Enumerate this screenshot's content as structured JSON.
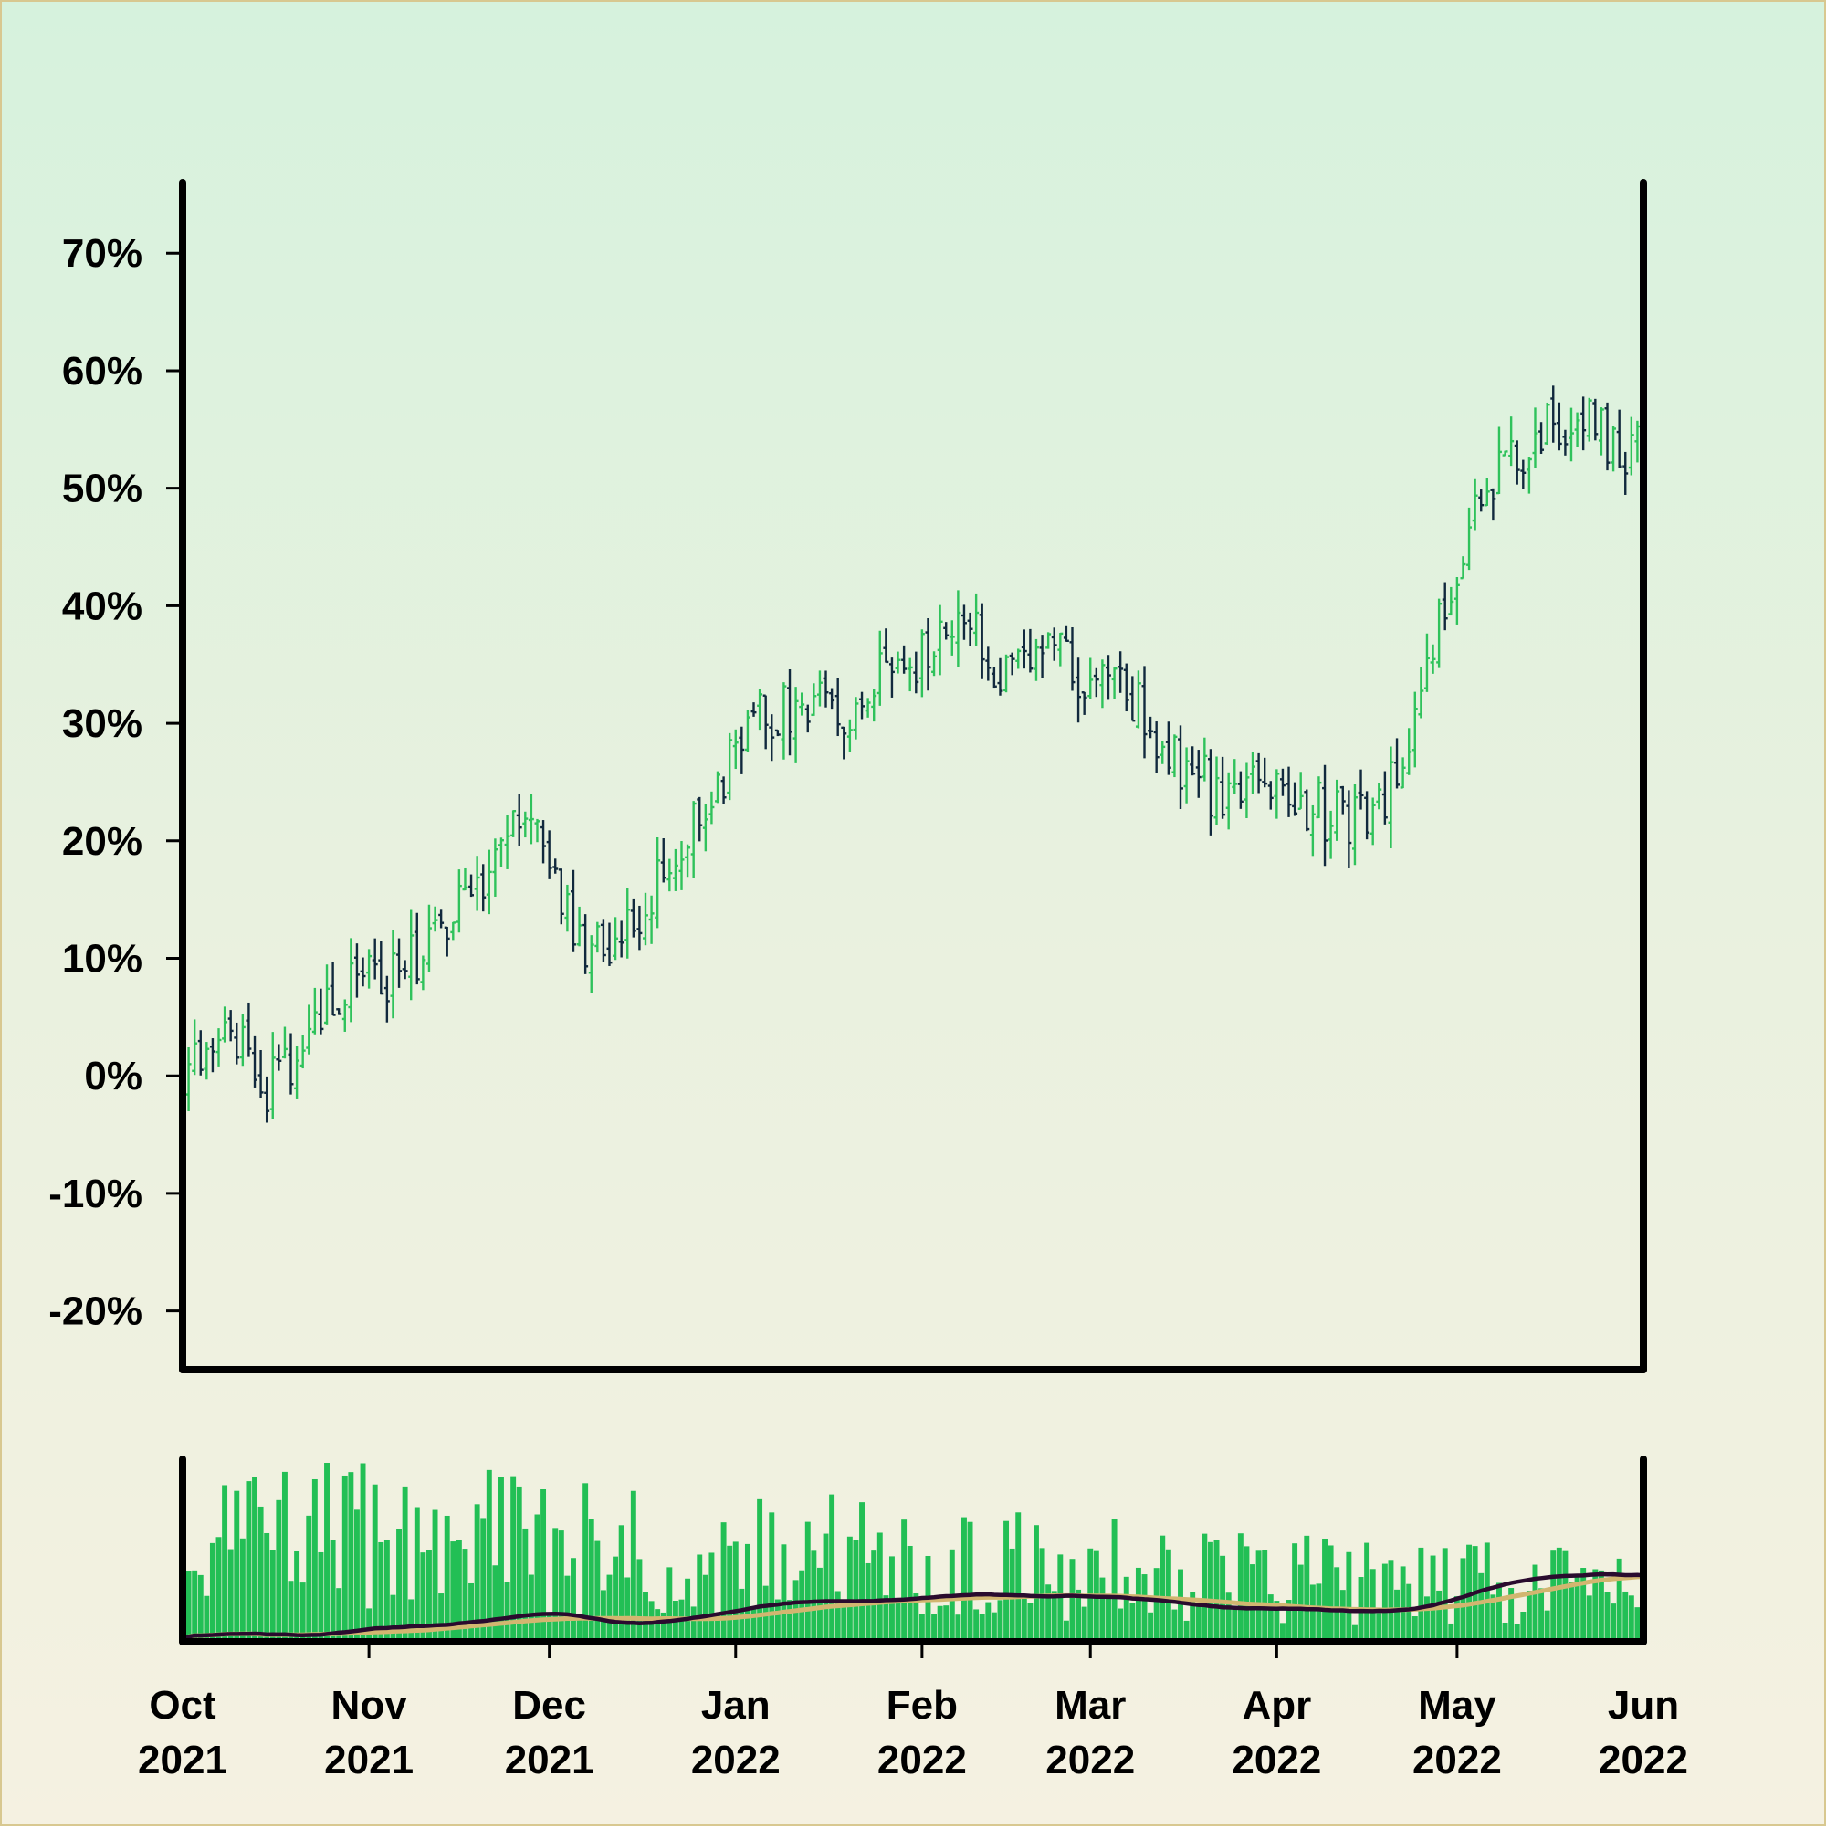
{
  "chart_data": {
    "type": "ohlc",
    "title": "",
    "xlabel": "",
    "ylabel": "",
    "ylim": [
      -25,
      76
    ],
    "y_ticks": [
      "70%",
      "60%",
      "50%",
      "40%",
      "30%",
      "20%",
      "10%",
      "0%",
      "-10%",
      "-20%"
    ],
    "y_tick_values": [
      70,
      60,
      50,
      40,
      30,
      20,
      10,
      0,
      -10,
      -20
    ],
    "x_range": [
      "2021-10-01",
      "2022-06-01"
    ],
    "x_ticks": [
      {
        "date": "2021-10-01",
        "month": "Oct",
        "year": "2021"
      },
      {
        "date": "2021-11-01",
        "month": "Nov",
        "year": "2021"
      },
      {
        "date": "2021-12-01",
        "month": "Dec",
        "year": "2021"
      },
      {
        "date": "2022-01-01",
        "month": "Jan",
        "year": "2022"
      },
      {
        "date": "2022-02-01",
        "month": "Feb",
        "year": "2022"
      },
      {
        "date": "2022-03-01",
        "month": "Mar",
        "year": "2022"
      },
      {
        "date": "2022-04-01",
        "month": "Apr",
        "year": "2022"
      },
      {
        "date": "2022-05-01",
        "month": "May",
        "year": "2022"
      },
      {
        "date": "2022-06-01",
        "month": "Jun",
        "year": "2022"
      }
    ],
    "grid": false,
    "colors": {
      "up": "#2fc25b",
      "down": "#11293d",
      "volume": "#22bf55",
      "ma_fast": "#2a0b2e",
      "ma_slow": "#d2b670"
    },
    "trend": [
      [
        "2021-10-01",
        0
      ],
      [
        "2021-10-08",
        4
      ],
      [
        "2021-10-15",
        -1
      ],
      [
        "2021-10-22",
        3
      ],
      [
        "2021-10-29",
        9
      ],
      [
        "2021-11-05",
        8
      ],
      [
        "2021-11-12",
        12
      ],
      [
        "2021-11-19",
        15
      ],
      [
        "2021-11-26",
        21
      ],
      [
        "2021-12-01",
        18
      ],
      [
        "2021-12-08",
        10
      ],
      [
        "2021-12-15",
        12
      ],
      [
        "2021-12-22",
        20
      ],
      [
        "2021-12-29",
        25
      ],
      [
        "2022-01-05",
        30
      ],
      [
        "2022-01-12",
        32
      ],
      [
        "2022-01-19",
        31
      ],
      [
        "2022-01-26",
        34
      ],
      [
        "2022-02-01",
        36
      ],
      [
        "2022-02-08",
        39
      ],
      [
        "2022-02-15",
        34
      ],
      [
        "2022-02-22",
        38
      ],
      [
        "2022-03-01",
        33
      ],
      [
        "2022-03-08",
        32
      ],
      [
        "2022-03-15",
        27
      ],
      [
        "2022-03-22",
        24
      ],
      [
        "2022-03-29",
        24
      ],
      [
        "2022-04-05",
        23
      ],
      [
        "2022-04-12",
        22
      ],
      [
        "2022-04-19",
        24
      ],
      [
        "2022-04-26",
        34
      ],
      [
        "2022-05-03",
        47
      ],
      [
        "2022-05-10",
        53
      ],
      [
        "2022-05-17",
        55
      ],
      [
        "2022-05-24",
        55
      ],
      [
        "2022-06-01",
        53
      ]
    ],
    "volume": {
      "baseline": 0,
      "moving_averages": [
        "fast",
        "slow"
      ]
    }
  }
}
